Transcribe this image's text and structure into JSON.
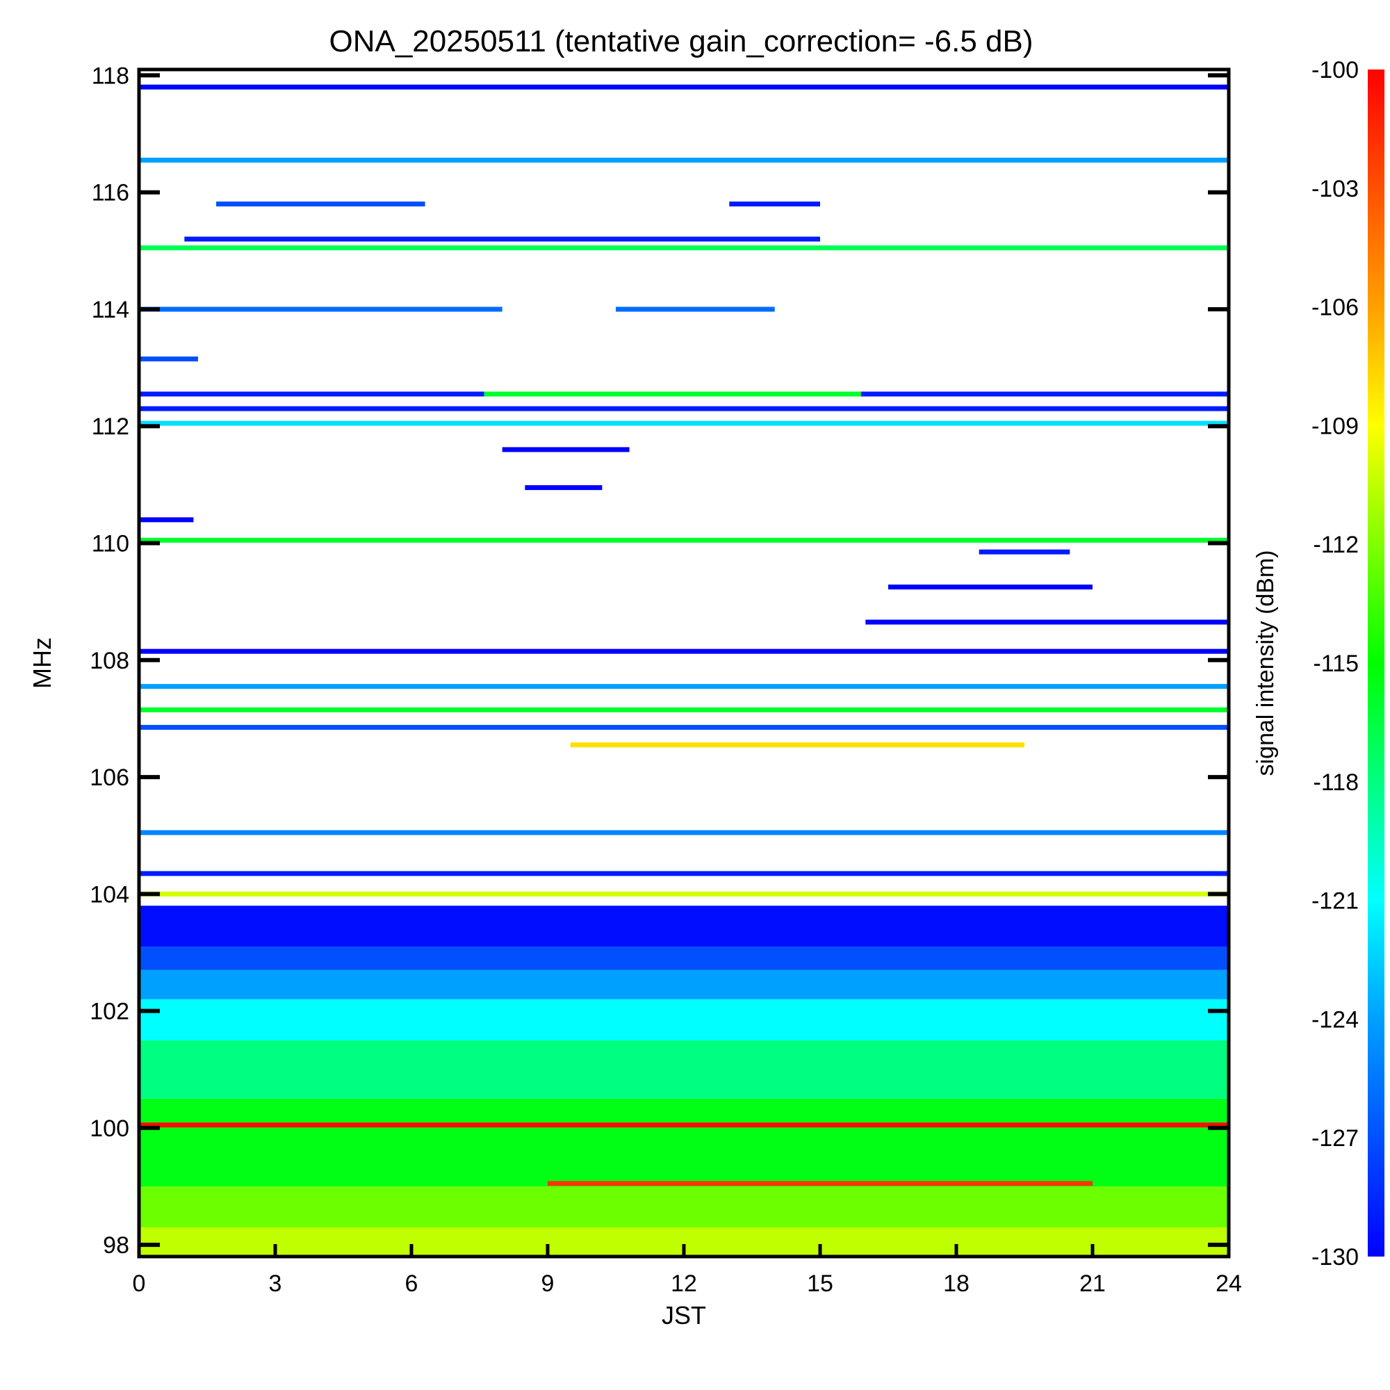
{
  "chart_data": {
    "type": "heatmap",
    "title": "ONA_20250511 (tentative gain_correction= -6.5 dB)",
    "xlabel": "JST",
    "ylabel": "MHz",
    "colorbar_label": "signal intensity (dBm)",
    "xlim": [
      0,
      24
    ],
    "ylim": [
      97.8,
      118.1
    ],
    "clim": [
      -130,
      -100
    ],
    "xticks": [
      0,
      3,
      6,
      9,
      12,
      15,
      18,
      21,
      24
    ],
    "yticks": [
      98,
      100,
      102,
      104,
      106,
      108,
      110,
      112,
      114,
      116,
      118
    ],
    "colorbar_ticks": [
      -100,
      -103,
      -106,
      -109,
      -112,
      -115,
      -118,
      -121,
      -124,
      -127,
      -130
    ],
    "colormap": [
      "#0000ff",
      "#0050ff",
      "#00a0ff",
      "#00ffff",
      "#00ff80",
      "#00ff00",
      "#80ff00",
      "#ffff00",
      "#ffa000",
      "#ff5000",
      "#ff0000"
    ],
    "background_band": [
      {
        "f_from": 97.8,
        "f_to": 98.3,
        "dbm": -110.5
      },
      {
        "f_from": 98.3,
        "f_to": 99.0,
        "dbm": -112.5
      },
      {
        "f_from": 99.0,
        "f_to": 100.5,
        "dbm": -115.5
      },
      {
        "f_from": 100.5,
        "f_to": 101.5,
        "dbm": -118
      },
      {
        "f_from": 101.5,
        "f_to": 102.2,
        "dbm": -121
      },
      {
        "f_from": 102.2,
        "f_to": 102.7,
        "dbm": -124
      },
      {
        "f_from": 102.7,
        "f_to": 103.1,
        "dbm": -127
      },
      {
        "f_from": 103.1,
        "f_to": 103.8,
        "dbm": -129.5
      }
    ],
    "signals": [
      {
        "f": 100.05,
        "t_from": 0,
        "t_to": 24,
        "dbm": -100.5
      },
      {
        "f": 99.05,
        "t_from": 9,
        "t_to": 21,
        "dbm": -102
      },
      {
        "f": 104.0,
        "t_from": 0,
        "t_to": 24,
        "dbm": -110
      },
      {
        "f": 104.35,
        "t_from": 0,
        "t_to": 24,
        "dbm": -129
      },
      {
        "f": 105.05,
        "t_from": 0,
        "t_to": 24,
        "dbm": -125
      },
      {
        "f": 106.55,
        "t_from": 9.5,
        "t_to": 19.5,
        "dbm": -108
      },
      {
        "f": 106.85,
        "t_from": 0,
        "t_to": 24,
        "dbm": -127
      },
      {
        "f": 107.15,
        "t_from": 0,
        "t_to": 24,
        "dbm": -116
      },
      {
        "f": 107.55,
        "t_from": 0,
        "t_to": 24,
        "dbm": -124
      },
      {
        "f": 108.15,
        "t_from": 0,
        "t_to": 24,
        "dbm": -130
      },
      {
        "f": 108.65,
        "t_from": 16,
        "t_to": 24,
        "dbm": -130
      },
      {
        "f": 109.25,
        "t_from": 16.5,
        "t_to": 21,
        "dbm": -130
      },
      {
        "f": 109.85,
        "t_from": 18.5,
        "t_to": 20.5,
        "dbm": -129
      },
      {
        "f": 110.05,
        "t_from": 0,
        "t_to": 24,
        "dbm": -116
      },
      {
        "f": 110.4,
        "t_from": 0,
        "t_to": 1.2,
        "dbm": -130
      },
      {
        "f": 110.95,
        "t_from": 8.5,
        "t_to": 10.2,
        "dbm": -130
      },
      {
        "f": 111.6,
        "t_from": 8,
        "t_to": 10.8,
        "dbm": -130
      },
      {
        "f": 112.05,
        "t_from": 0,
        "t_to": 24,
        "dbm": -122
      },
      {
        "f": 112.3,
        "t_from": 0,
        "t_to": 24,
        "dbm": -129
      },
      {
        "f": 112.55,
        "t_from": 0,
        "t_to": 7.6,
        "dbm": -129
      },
      {
        "f": 112.55,
        "t_from": 7.6,
        "t_to": 15.9,
        "dbm": -116
      },
      {
        "f": 112.55,
        "t_from": 15.9,
        "t_to": 24,
        "dbm": -129
      },
      {
        "f": 113.15,
        "t_from": 0,
        "t_to": 1.3,
        "dbm": -127
      },
      {
        "f": 114.0,
        "t_from": 0,
        "t_to": 8,
        "dbm": -126
      },
      {
        "f": 114.0,
        "t_from": 10.5,
        "t_to": 14,
        "dbm": -126
      },
      {
        "f": 115.05,
        "t_from": 0,
        "t_to": 24,
        "dbm": -117
      },
      {
        "f": 115.2,
        "t_from": 1,
        "t_to": 15,
        "dbm": -129
      },
      {
        "f": 115.8,
        "t_from": 1.7,
        "t_to": 6.3,
        "dbm": -127
      },
      {
        "f": 115.8,
        "t_from": 13,
        "t_to": 15,
        "dbm": -129
      },
      {
        "f": 116.55,
        "t_from": 0,
        "t_to": 24,
        "dbm": -124
      },
      {
        "f": 117.8,
        "t_from": 0,
        "t_to": 24,
        "dbm": -130
      }
    ]
  }
}
